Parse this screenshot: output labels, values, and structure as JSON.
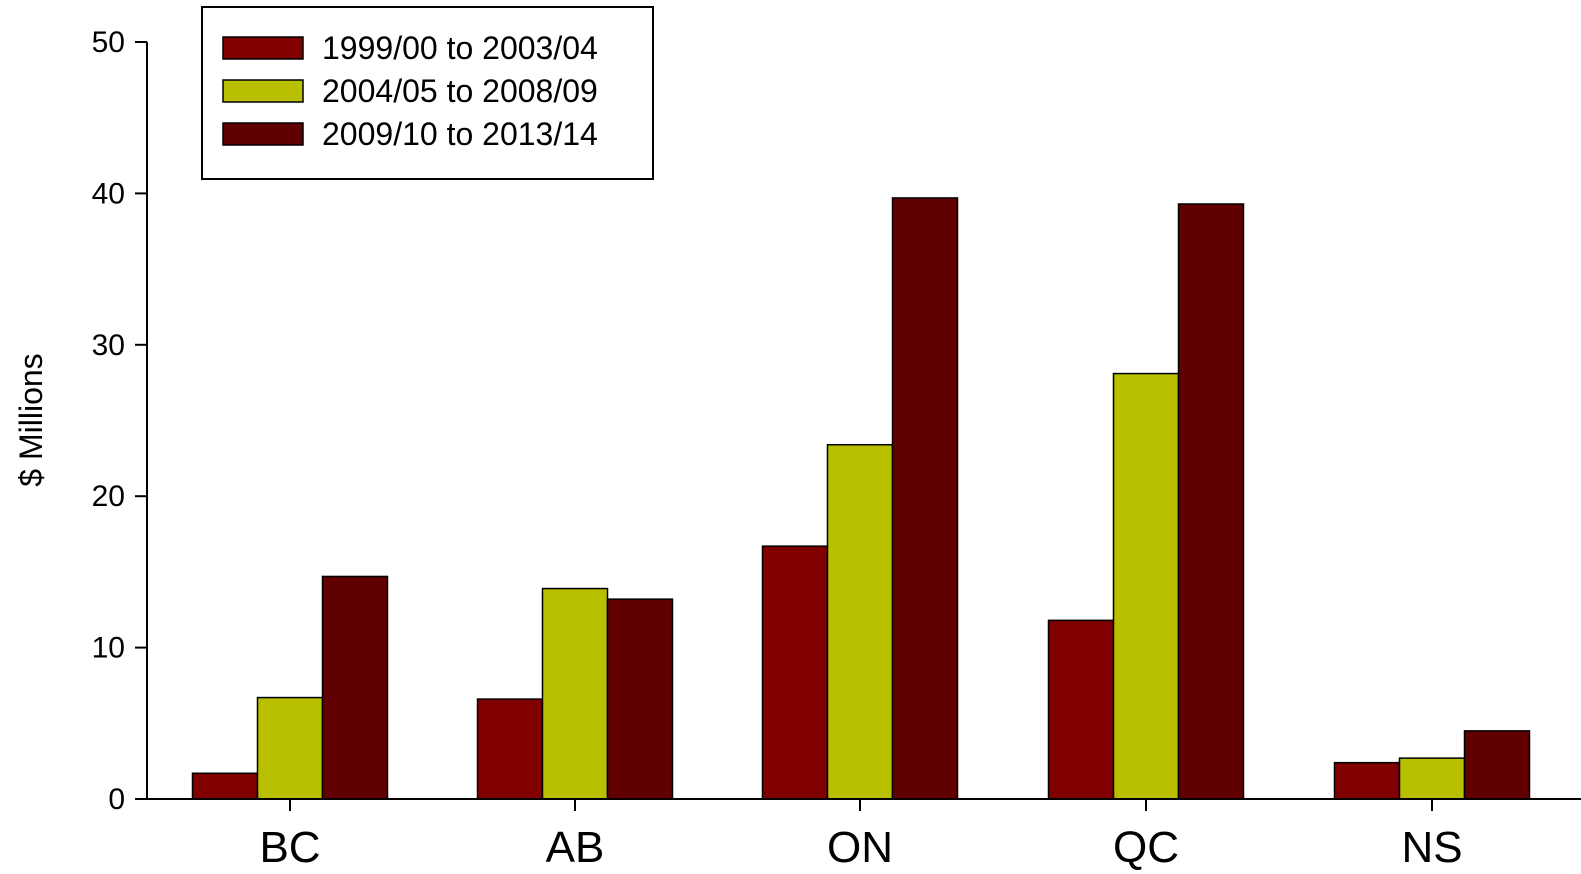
{
  "chart_data": {
    "type": "bar",
    "categories": [
      "BC",
      "AB",
      "ON",
      "QC",
      "NS"
    ],
    "series": [
      {
        "name": "1999/00 to 2003/04",
        "color": "#800000",
        "values": [
          1.7,
          6.6,
          16.7,
          11.8,
          2.4
        ]
      },
      {
        "name": "2004/05 to 2008/09",
        "color": "#b8c000",
        "values": [
          6.7,
          13.9,
          23.4,
          28.1,
          2.7
        ]
      },
      {
        "name": "2009/10 to 2013/14",
        "color": "#600000",
        "values": [
          14.7,
          13.2,
          39.7,
          39.3,
          4.5
        ]
      }
    ],
    "ylabel": "$ Millions",
    "ylim": [
      0,
      50
    ],
    "yticks": [
      0,
      10,
      20,
      30,
      40,
      50
    ],
    "grid": false,
    "legend_position": "top-left"
  }
}
